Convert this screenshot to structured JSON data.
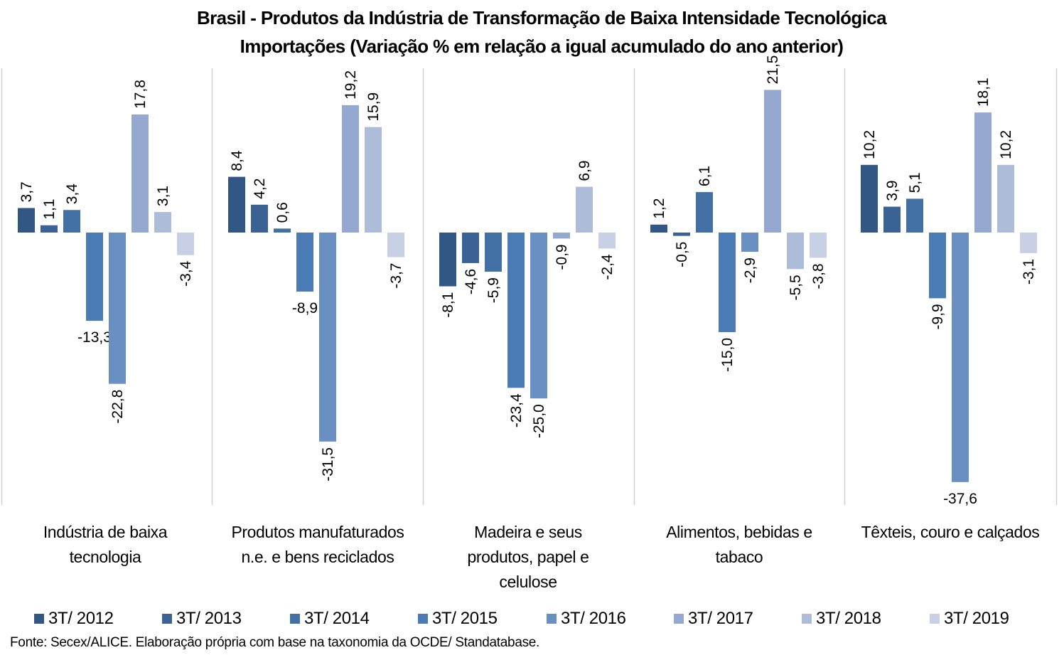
{
  "chart_data": {
    "type": "bar",
    "title": "Brasil - Produtos da Indústria de Transformação de Baixa Intensidade Tecnológica",
    "subtitle": "Importações (Variação % em relação a igual acumulado do ano anterior)",
    "xlabel": "",
    "ylabel": "",
    "ylim": [
      -38,
      24
    ],
    "grid": false,
    "legend_position": "bottom",
    "decimal_separator": ",",
    "categories": [
      "Indústria de baixa tecnologia",
      "Produtos manufaturados n.e. e bens reciclados",
      "Madeira e seus produtos, papel e celulose",
      "Alimentos, bebidas e tabaco",
      "Têxteis, couro e calçados"
    ],
    "category_lines": [
      [
        "Indústria de baixa",
        "tecnologia"
      ],
      [
        "Produtos manufaturados",
        "n.e. e bens reciclados"
      ],
      [
        "Madeira e seus",
        "produtos, papel e",
        "celulose"
      ],
      [
        "Alimentos, bebidas e",
        "tabaco"
      ],
      [
        "Têxteis, couro e calçados"
      ]
    ],
    "series": [
      {
        "name": "3T/ 2012",
        "color": "#335784",
        "values": [
          3.7,
          8.4,
          -8.1,
          1.2,
          10.2
        ]
      },
      {
        "name": "3T/ 2013",
        "color": "#3b6294",
        "values": [
          1.1,
          4.2,
          -4.6,
          -0.5,
          3.9
        ]
      },
      {
        "name": "3T/ 2014",
        "color": "#4270a5",
        "values": [
          3.4,
          0.6,
          -5.9,
          6.1,
          5.1
        ]
      },
      {
        "name": "3T/ 2015",
        "color": "#4a7bb4",
        "values": [
          -13.3,
          -8.9,
          -23.4,
          -15.0,
          -9.9
        ]
      },
      {
        "name": "3T/ 2016",
        "color": "#6a8fc3",
        "values": [
          -22.8,
          -31.5,
          -25.0,
          -2.9,
          -37.6
        ]
      },
      {
        "name": "3T/ 2017",
        "color": "#95a9d0",
        "values": [
          17.8,
          19.2,
          -0.9,
          21.5,
          18.1
        ]
      },
      {
        "name": "3T/ 2018",
        "color": "#adbdd9",
        "values": [
          3.1,
          15.9,
          6.9,
          -5.5,
          10.2
        ]
      },
      {
        "name": "3T/ 2019",
        "color": "#c7d0e4",
        "values": [
          -3.4,
          -3.7,
          -2.4,
          -3.8,
          -3.1
        ]
      }
    ],
    "horizontal_data_labels": [
      [
        3,
        0
      ],
      [
        3,
        1
      ],
      [
        4,
        4
      ]
    ],
    "source": "Fonte: Secex/ALICE. Elaboração própria com base na taxonomia da OCDE/ Standatabase."
  }
}
